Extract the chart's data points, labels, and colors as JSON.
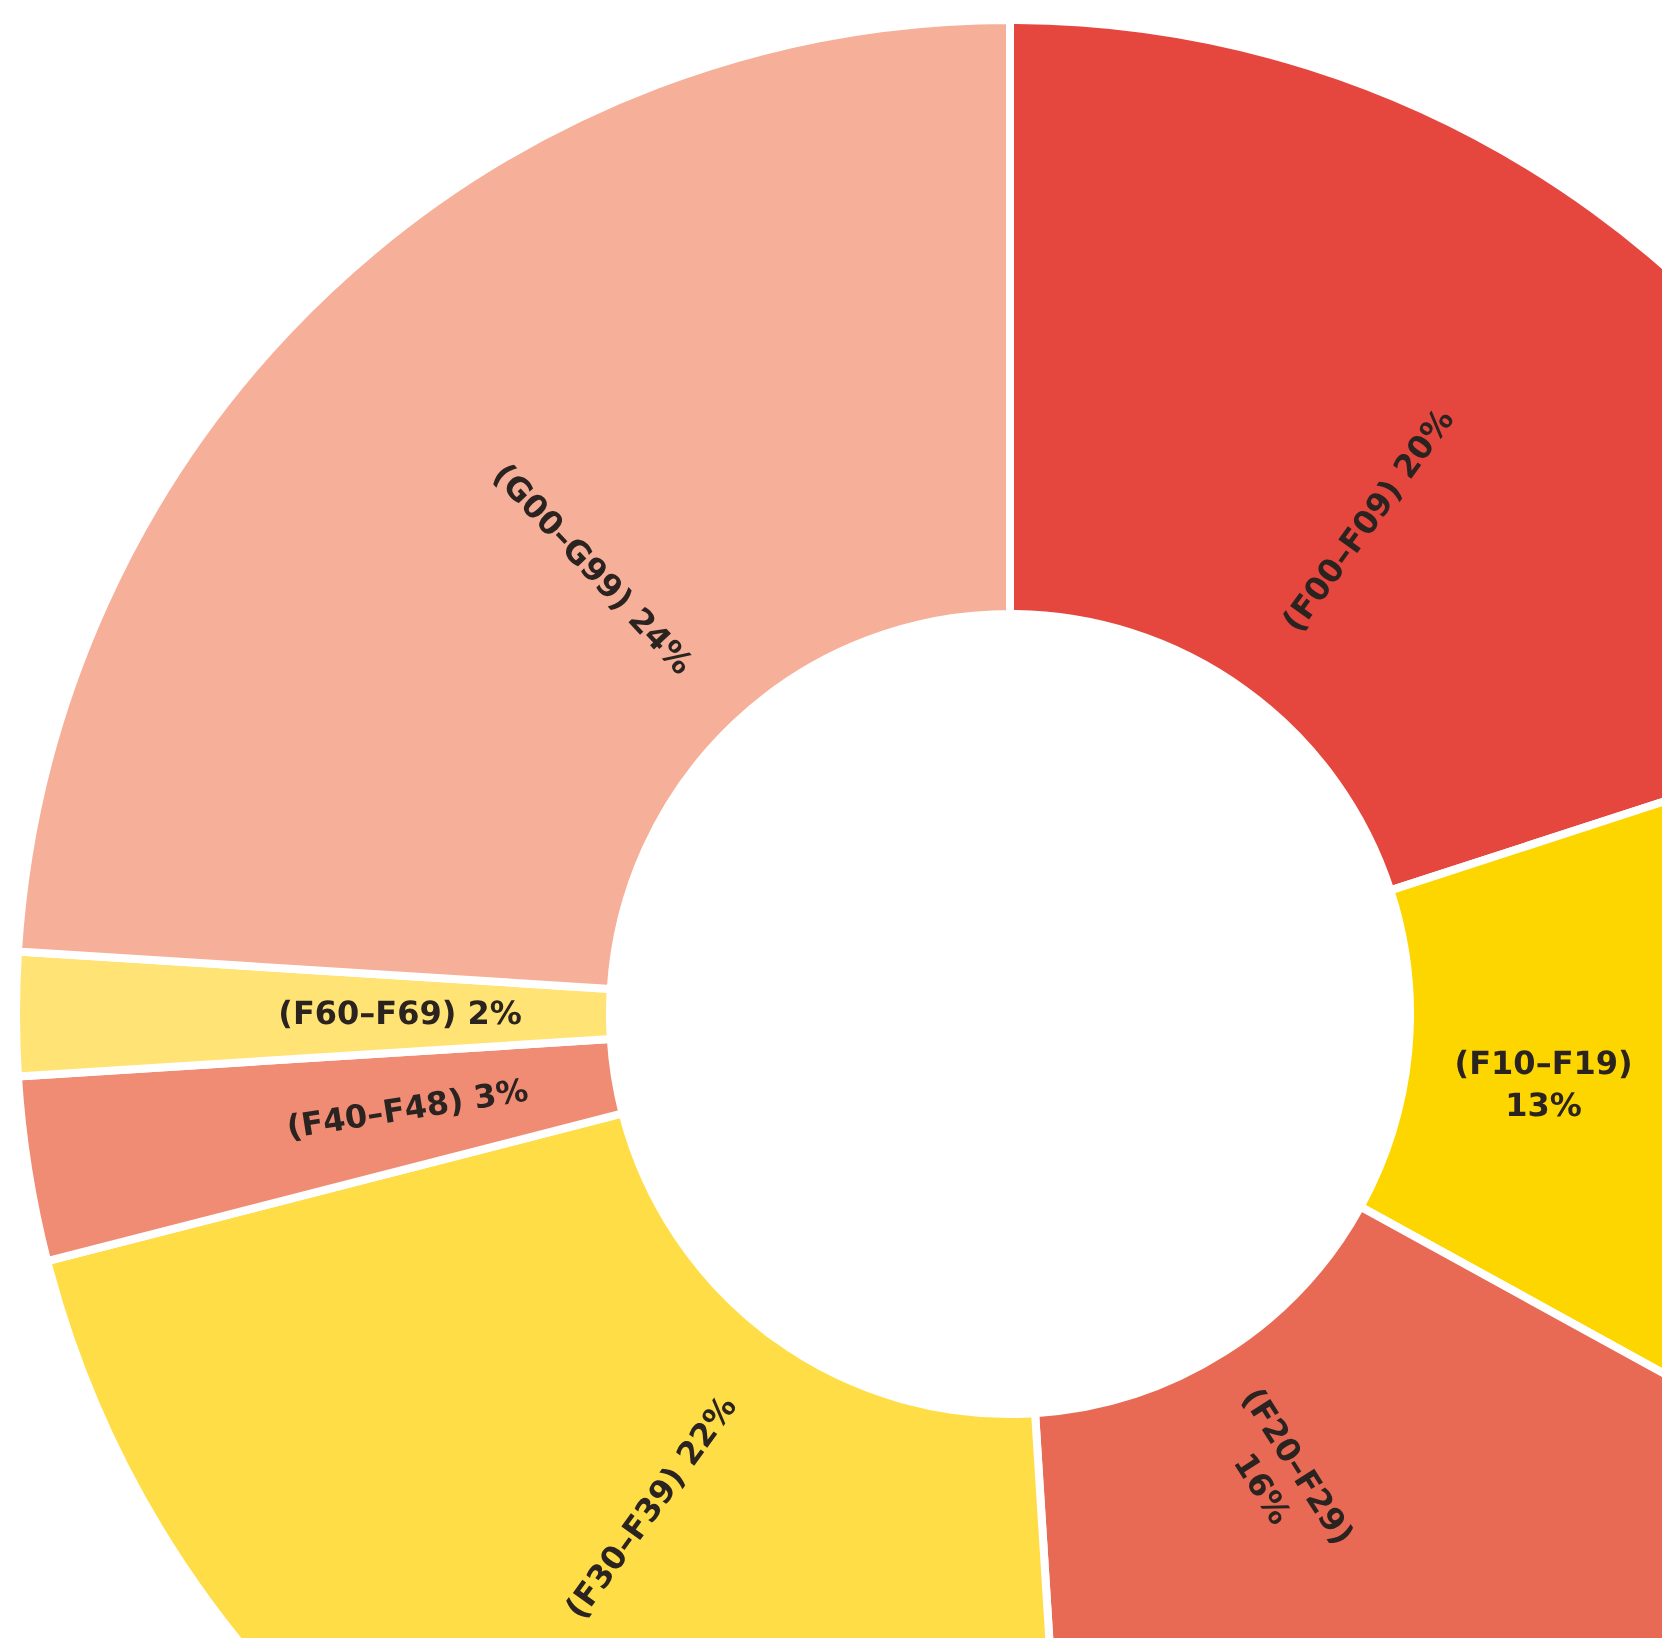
{
  "chart_data": {
    "type": "donut",
    "categories": [
      "(F00–F09)",
      "(F10–F19)",
      "(F20–F29)",
      "(F30–F39)",
      "(F40–F48)",
      "(F60–F69)",
      "(G00–G99)"
    ],
    "values": [
      20,
      13,
      16,
      22,
      3,
      2,
      24
    ],
    "value_labels": [
      "20%",
      "13%",
      "16%",
      "22%",
      "3%",
      "2%",
      "24%"
    ],
    "colors": [
      "#e5473f",
      "#fdd600",
      "#e86a55",
      "#ffdd47",
      "#f08c74",
      "#ffe475",
      "#f6af99"
    ],
    "data_labels": true
  }
}
